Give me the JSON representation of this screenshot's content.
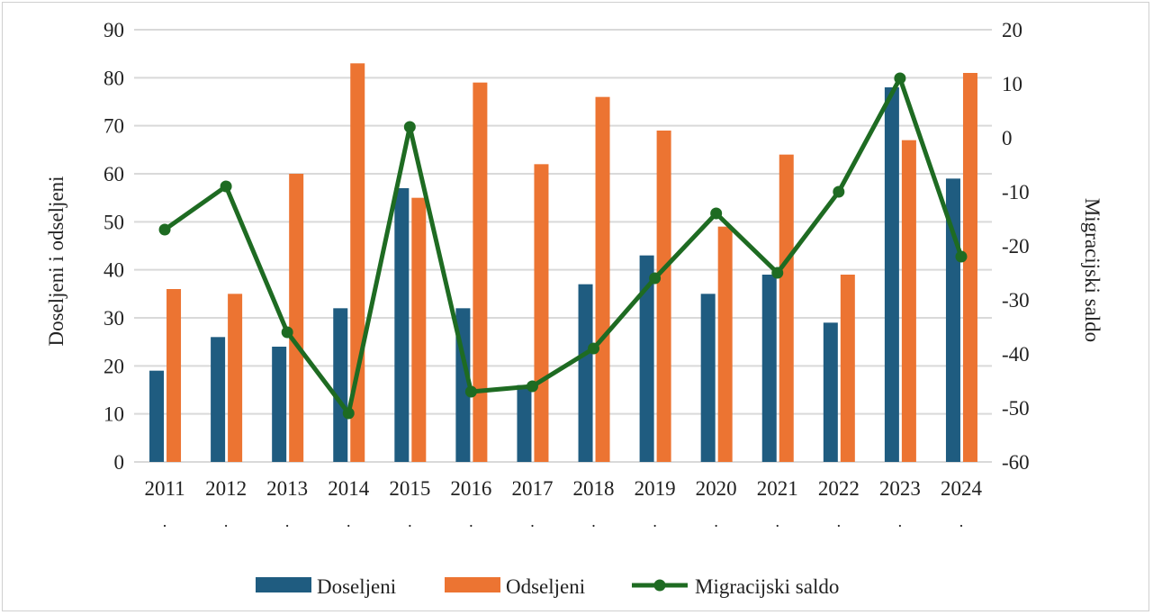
{
  "chart_data": {
    "type": "bar+line",
    "categories": [
      "2011",
      "2012",
      "2013",
      "2014",
      "2015",
      "2016",
      "2017",
      "2018",
      "2019",
      "2020",
      "2021",
      "2022",
      "2023",
      "2024"
    ],
    "category_sublabel": ".",
    "series": [
      {
        "name": "Doseljeni",
        "type": "bar",
        "axis": "left",
        "color": "#1f5c80",
        "values": [
          19,
          26,
          24,
          32,
          57,
          32,
          16,
          37,
          43,
          35,
          39,
          29,
          78,
          59
        ]
      },
      {
        "name": "Odseljeni",
        "type": "bar",
        "axis": "left",
        "color": "#ec7432",
        "values": [
          36,
          35,
          60,
          83,
          55,
          79,
          62,
          76,
          69,
          49,
          64,
          39,
          67,
          81
        ]
      },
      {
        "name": "Migracijski saldo",
        "type": "line",
        "axis": "right",
        "color": "#1e6b22",
        "values": [
          -17,
          -9,
          -36,
          -51,
          2,
          -47,
          -46,
          -39,
          -26,
          -14,
          -25,
          -10,
          11,
          -22
        ]
      }
    ],
    "ylabel": "Doseljeni i odseljeni",
    "y2label": "Migracijski saldo",
    "ylim": [
      0,
      90
    ],
    "y2lim": [
      -60,
      20
    ],
    "yticks": [
      0,
      10,
      20,
      30,
      40,
      50,
      60,
      70,
      80,
      90
    ],
    "y2ticks": [
      -60,
      -50,
      -40,
      -30,
      -20,
      -10,
      0,
      10,
      20
    ],
    "grid": true,
    "legend": "bottom"
  }
}
